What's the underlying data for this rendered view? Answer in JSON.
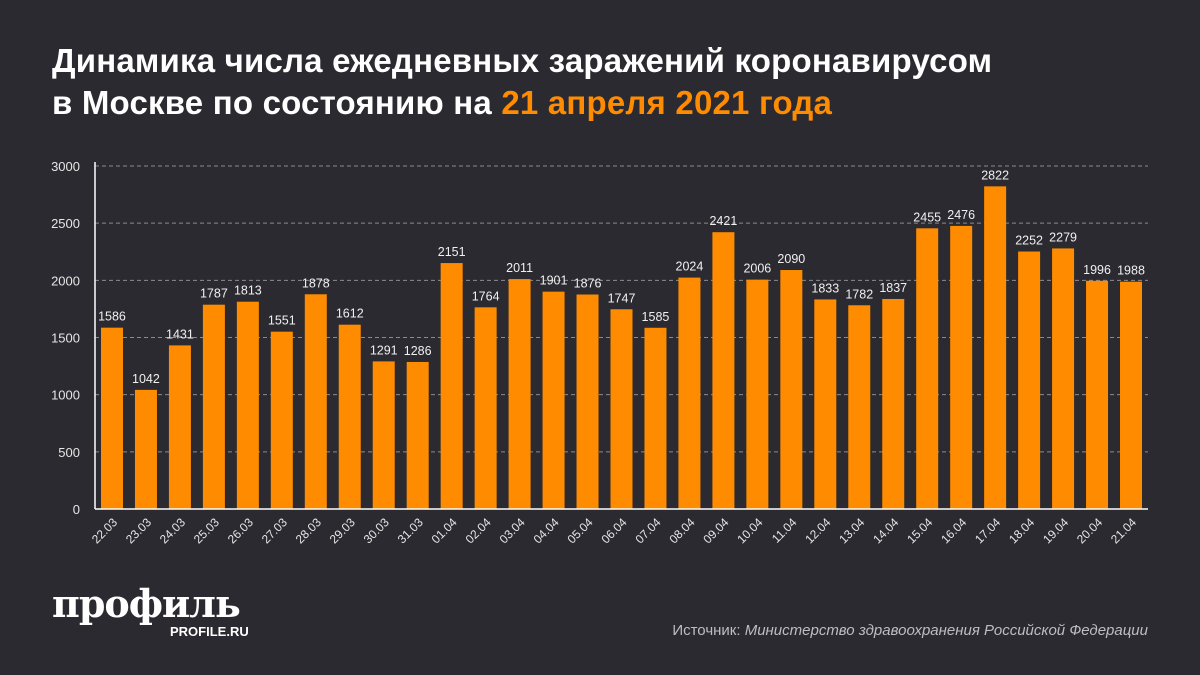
{
  "title": {
    "line1": "Динамика числа ежедневных заражений коронавирусом",
    "line2_prefix": "в Москве по состоянию на ",
    "line2_accent": "21 апреля 2021 года"
  },
  "colors": {
    "bar": "#ff8c00",
    "background": "#2a2a30",
    "accent": "#ff8c00"
  },
  "chart_data": {
    "type": "bar",
    "categories": [
      "22.03",
      "23.03",
      "24.03",
      "25.03",
      "26.03",
      "27.03",
      "28.03",
      "29.03",
      "30.03",
      "31.03",
      "01.04",
      "02.04",
      "03.04",
      "04.04",
      "05.04",
      "06.04",
      "07.04",
      "08.04",
      "09.04",
      "10.04",
      "11.04",
      "12.04",
      "13.04",
      "14.04",
      "15.04",
      "16.04",
      "17.04",
      "18.04",
      "19.04",
      "20.04",
      "21.04"
    ],
    "values": [
      1586,
      1042,
      1431,
      1787,
      1813,
      1551,
      1878,
      1612,
      1291,
      1286,
      2151,
      1764,
      2011,
      1901,
      1876,
      1747,
      1585,
      2024,
      2421,
      2006,
      2090,
      1833,
      1782,
      1837,
      2455,
      2476,
      2822,
      2252,
      2279,
      1996,
      1988
    ],
    "ylim": [
      0,
      3000
    ],
    "yticks": [
      0,
      500,
      1000,
      1500,
      2000,
      2500,
      3000
    ],
    "grid": true
  },
  "footer": {
    "logo": "профиль",
    "logo_sub": "PROFILE.RU",
    "source_label": "Источник: ",
    "source_value": "Министерство здравоохранения Российской Федерации"
  }
}
